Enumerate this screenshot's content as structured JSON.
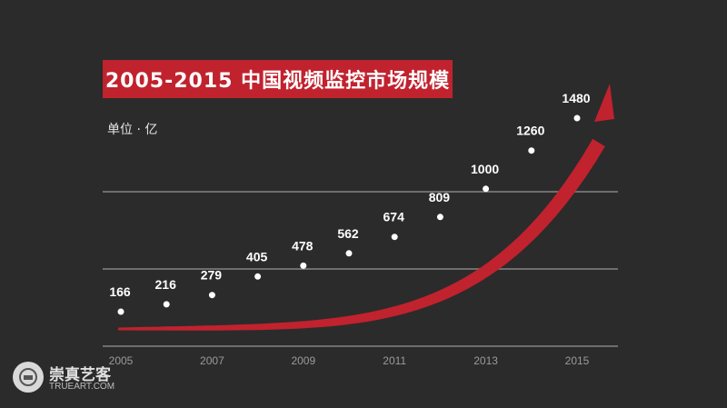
{
  "title": "2005-2015 中国视频监控市场规模",
  "unit_label": "单位 · 亿",
  "watermark": {
    "name": "崇真艺客",
    "site": "TRUEART.COM"
  },
  "colors": {
    "background": "#2b2b2b",
    "accent": "#c0222e",
    "gridline": "#6e6e6e",
    "text": "#ffffff",
    "tick_text": "#9a9a9a"
  },
  "chart_data": {
    "type": "scatter",
    "title": "2005-2015 中国视频监控市场规模",
    "ylabel": "单位 · 亿",
    "x": [
      2005,
      2006,
      2007,
      2008,
      2009,
      2010,
      2011,
      2012,
      2013,
      2014,
      2015
    ],
    "values": [
      166,
      216,
      279,
      405,
      478,
      562,
      674,
      809,
      1000,
      1260,
      1480
    ],
    "x_tick_labels": [
      "2005",
      "2007",
      "2009",
      "2011",
      "2013",
      "2015"
    ],
    "grid": true,
    "trend_arrow": true
  }
}
